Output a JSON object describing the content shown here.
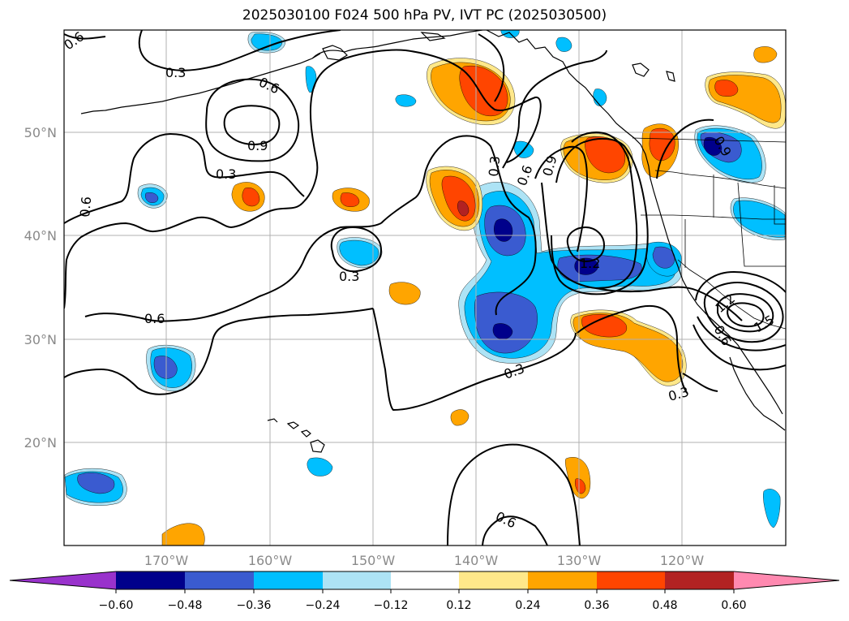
{
  "title": "2025030100 F024 500 hPa PV, IVT PC (2025030500)",
  "colors": {
    "neg_060": "#9932CC",
    "neg_048": "#00008B",
    "neg_036": "#3A5BD0",
    "neg_024": "#00BFFF",
    "neg_012": "#ADE3F5",
    "zero": "#FFFFFF",
    "pos_012": "#FFE88A",
    "pos_024": "#FFA500",
    "pos_036": "#FF4500",
    "pos_048": "#B22222",
    "pos_060": "#FF89B0"
  },
  "latitude_labels": [
    "50°N",
    "40°N",
    "30°N",
    "20°N"
  ],
  "longitude_labels": [
    "170°W",
    "160°W",
    "150°W",
    "140°W",
    "130°W",
    "120°W"
  ],
  "contour_labels": {
    "c1": "0.6",
    "c2": "0.3",
    "c3": "0.6",
    "c4": "0.9",
    "c5": "0.3",
    "c6": "0.6",
    "c7": "0.3",
    "c8": "0.6",
    "c9": "0.3",
    "c10": "0.6",
    "c11": "0.9",
    "c12": "1.2",
    "c13": "0.3",
    "c14": "0.3",
    "c15": "0.6",
    "c16": "0.6",
    "c17": "1.2",
    "c18": "1.5",
    "c19": "0.9"
  },
  "colorbar": {
    "ticks": [
      "−0.60",
      "−0.48",
      "−0.36",
      "−0.24",
      "−0.12",
      "0.12",
      "0.24",
      "0.36",
      "0.48",
      "0.60"
    ]
  }
}
